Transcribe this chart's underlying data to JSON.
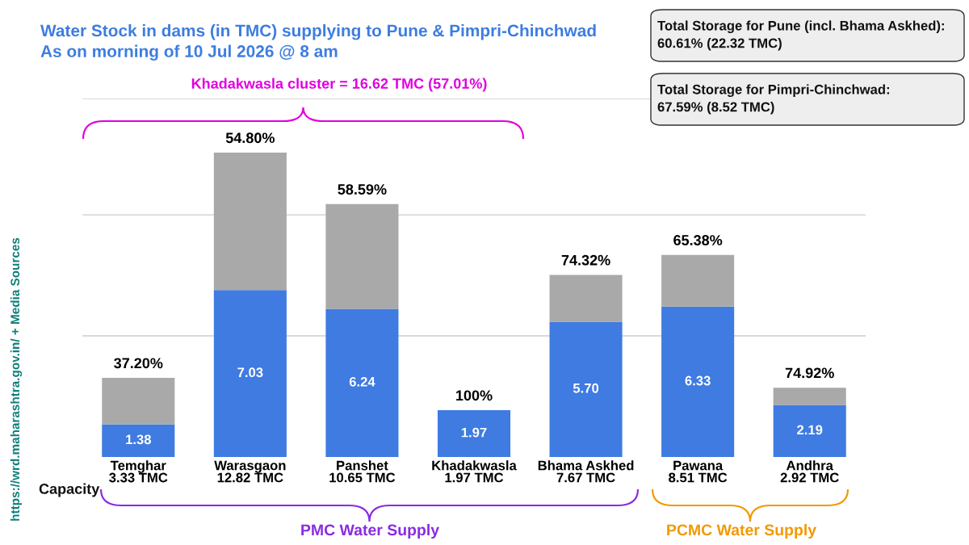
{
  "chart_data": {
    "type": "bar",
    "stacked": true,
    "title": "Water Stock in dams (in TMC) supplying to Pune & Pimpri-Chinchwad\nAs on morning of 10 Jul 2026 @ 8 am",
    "categories": [
      "Temghar\n3.33 TMC",
      "Warasgaon\n12.82 TMC",
      "Panshet\n10.65 TMC",
      "Khadakwasla\n1.97 TMC",
      "Bhama Askhed\n7.67 TMC",
      "Pawana\n8.51 TMC",
      "Andhra\n2.92 TMC"
    ],
    "series": [
      {
        "color": "#3f7be0",
        "values": [
          1.38,
          7.03,
          6.24,
          1.97,
          5.7,
          6.33,
          2.19
        ],
        "value_labels": [
          "1.38",
          "7.03",
          "6.24",
          "1.97",
          "5.70",
          "6.33",
          "2.19"
        ]
      },
      {
        "color": "#a9a9a9",
        "values": [
          1.95,
          5.79,
          4.41,
          0,
          1.97,
          2.18,
          0.73
        ]
      }
    ],
    "ylim": [
      0,
      15.1
    ],
    "ref_lines": [
      {
        "axis": "y",
        "value": 5.1,
        "color": "#cccccc"
      },
      {
        "axis": "y",
        "value": 10.2,
        "color": "#cccccc"
      },
      {
        "axis": "y",
        "value": 15.1,
        "color": "#cccccc"
      }
    ],
    "tick_labels": "x",
    "legend": false,
    "annotations": [
      {
        "text": "37.20%",
        "x": "Temghar\n3.33 TMC",
        "y": 3.33
      },
      {
        "text": "54.80%",
        "x": "Warasgaon\n12.82 TMC",
        "y": 12.82
      },
      {
        "text": "58.59%",
        "x": "Panshet\n10.65 TMC",
        "y": 10.65
      },
      {
        "text": "100%",
        "x": "Khadakwasla\n1.97 TMC",
        "y": 1.97
      },
      {
        "text": "74.32%",
        "x": "Bhama Askhed\n7.67 TMC",
        "y": 7.67
      },
      {
        "text": "65.38%",
        "x": "Pawana\n8.51 TMC",
        "y": 8.51
      },
      {
        "text": "74.92%",
        "x": "Andhra\n2.92 TMC",
        "y": 2.92
      },
      "Khadakwasla cluster = 16.62 TMC (57.01%)",
      "PMC Water Supply",
      "PCMC Water Supply",
      "Total Storage for Pune (incl. Bhama Askhed):\n60.61% (22.32 TMC)",
      "Total Storage for Pimpri-Chinchwad:\n67.59% (8.52 TMC)",
      "Capacity",
      "https://wrd.maharashtra.gov.in/ + Media Sources"
    ]
  }
}
